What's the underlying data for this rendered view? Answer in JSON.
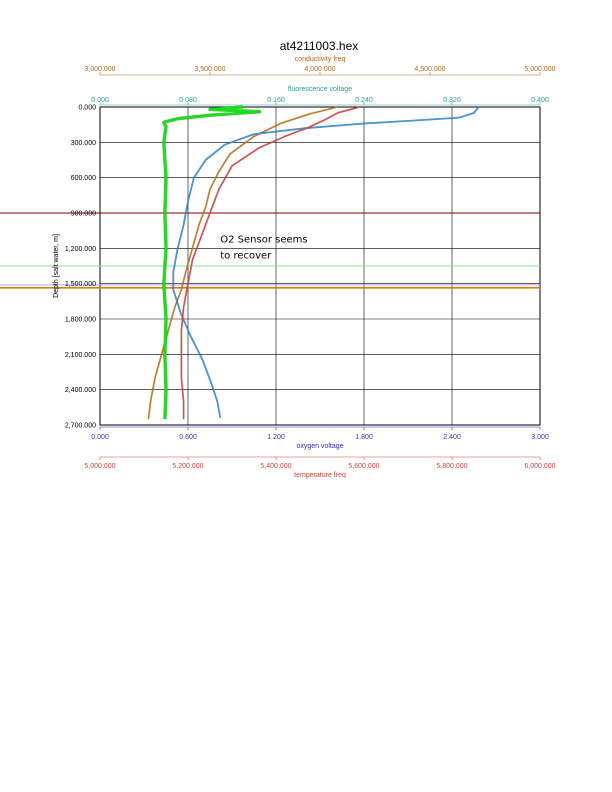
{
  "chart_data": {
    "type": "line",
    "title": "at4211003.hex",
    "ylabel": "Depth [salt water, m]",
    "ylim": [
      0,
      2700
    ],
    "y_ticks": [
      "0.000",
      "300.000",
      "600.000",
      "900.000",
      "1,200.000",
      "1,500.000",
      "1,800.000",
      "2,100.000",
      "2,400.000",
      "2,700.000"
    ],
    "y_reversed": true,
    "grid": true,
    "top_axes": [
      {
        "label": "conductivity freq",
        "color": "#b5651d",
        "min": 3000000,
        "max": 5000000,
        "ticks": [
          "3,000.000",
          "3,500.000",
          "4,000.000",
          "4,500.000",
          "5,000.000"
        ]
      },
      {
        "label": "fluorescence voltage",
        "color": "#2a9d9d",
        "min": 0,
        "max": 0.4,
        "ticks": [
          "0.000",
          "0.080",
          "0.160",
          "0.240",
          "0.320",
          "0.400"
        ]
      }
    ],
    "bottom_axes": [
      {
        "label": "oxygen voltage",
        "color": "#3030c0",
        "min": 0,
        "max": 3,
        "ticks": [
          "0.000",
          "0.600",
          "1.200",
          "1.800",
          "2.400",
          "3.000"
        ]
      },
      {
        "label": "temperature freq",
        "color": "#e04040",
        "min": 5000000,
        "max": 6000000,
        "ticks": [
          "5,000.000",
          "5,200.000",
          "5,400.000",
          "5,600.000",
          "5,800.000",
          "6,000.000"
        ]
      }
    ],
    "series": [
      {
        "axis": "conductivity",
        "color": "#c97a1e",
        "marker": "#8a4f10",
        "points": [
          [
            4080000,
            0
          ],
          [
            3950000,
            60
          ],
          [
            3820000,
            140
          ],
          [
            3700000,
            250
          ],
          [
            3590000,
            400
          ],
          [
            3540000,
            550
          ],
          [
            3500000,
            700
          ],
          [
            3480000,
            850
          ],
          [
            3450000,
            1000
          ],
          [
            3420000,
            1200
          ],
          [
            3390000,
            1400
          ],
          [
            3370000,
            1550
          ],
          [
            3340000,
            1700
          ],
          [
            3310000,
            1900
          ],
          [
            3280000,
            2100
          ],
          [
            3250000,
            2300
          ],
          [
            3230000,
            2500
          ],
          [
            3220000,
            2650
          ]
        ]
      },
      {
        "axis": "oxygen",
        "color": "#2aa8e0",
        "marker": "#1a1a80",
        "points": [
          [
            2.58,
            0
          ],
          [
            2.55,
            50
          ],
          [
            2.45,
            90
          ],
          [
            2.2,
            110
          ],
          [
            1.8,
            140
          ],
          [
            1.4,
            180
          ],
          [
            1.05,
            230
          ],
          [
            0.85,
            320
          ],
          [
            0.72,
            450
          ],
          [
            0.64,
            600
          ],
          [
            0.6,
            800
          ],
          [
            0.57,
            1000
          ],
          [
            0.53,
            1200
          ],
          [
            0.5,
            1400
          ],
          [
            0.5,
            1550
          ],
          [
            0.55,
            1750
          ],
          [
            0.62,
            1950
          ],
          [
            0.7,
            2150
          ],
          [
            0.76,
            2350
          ],
          [
            0.8,
            2500
          ],
          [
            0.82,
            2640
          ]
        ]
      },
      {
        "axis": "temperature",
        "color": "#e04848",
        "marker": "#a02020",
        "points": [
          [
            5590000,
            0
          ],
          [
            5540000,
            50
          ],
          [
            5510000,
            110
          ],
          [
            5470000,
            180
          ],
          [
            5420000,
            250
          ],
          [
            5360000,
            350
          ],
          [
            5300000,
            500
          ],
          [
            5270000,
            700
          ],
          [
            5250000,
            900
          ],
          [
            5230000,
            1100
          ],
          [
            5210000,
            1300
          ],
          [
            5200000,
            1500
          ],
          [
            5190000,
            1700
          ],
          [
            5185000,
            1900
          ],
          [
            5185000,
            2100
          ],
          [
            5185000,
            2300
          ],
          [
            5190000,
            2500
          ],
          [
            5190000,
            2650
          ]
        ]
      },
      {
        "axis": "fluorescence",
        "color": "#18e018",
        "marker": "#0a8a0a",
        "points": [
          [
            0.13,
            0
          ],
          [
            0.1,
            20
          ],
          [
            0.145,
            40
          ],
          [
            0.1,
            70
          ],
          [
            0.07,
            100
          ],
          [
            0.058,
            130
          ],
          [
            0.06,
            170
          ],
          [
            0.058,
            300
          ],
          [
            0.06,
            600
          ],
          [
            0.059,
            900
          ],
          [
            0.06,
            1200
          ],
          [
            0.058,
            1500
          ],
          [
            0.06,
            1800
          ],
          [
            0.059,
            2100
          ],
          [
            0.06,
            2400
          ],
          [
            0.059,
            2650
          ]
        ]
      }
    ],
    "horizontal_lines": [
      {
        "depth": 900,
        "color": "#800000"
      },
      {
        "depth": 1350,
        "color": "#90e090"
      },
      {
        "depth": 1510,
        "color": "#c0a0ff"
      },
      {
        "depth": 1535,
        "color": "#c8860a"
      }
    ],
    "annotation": {
      "text_line1": "O2 Sensor seems",
      "text_line2": "to recover",
      "depth": 1150,
      "oxygen_value": 0.82
    }
  }
}
